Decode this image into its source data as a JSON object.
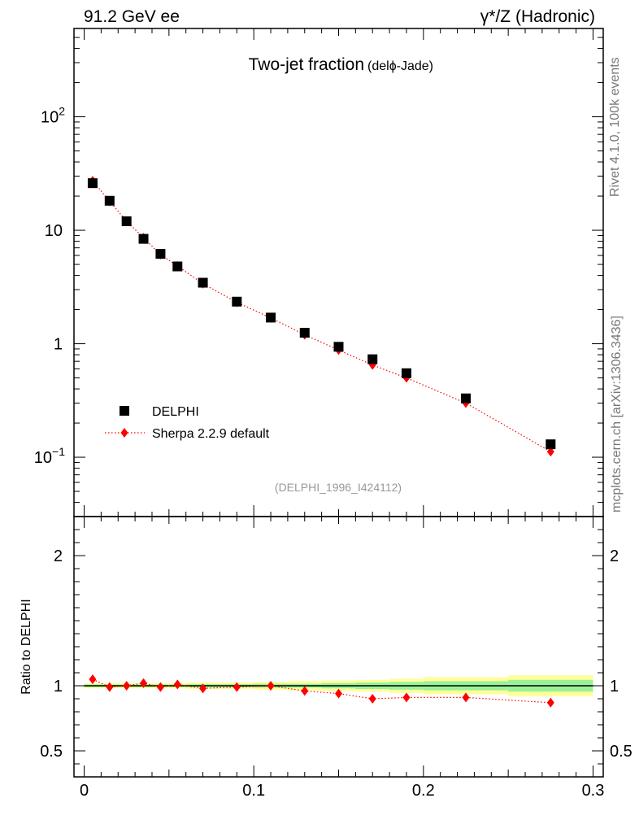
{
  "header": {
    "left": "91.2 GeV ee",
    "right_sym": "γ*/Z",
    "right_rest": " (Hadronic)"
  },
  "side": {
    "rivet": "Rivet 4.1.0,  100k events",
    "mcplots": "mcplots.cern.ch [arXiv:1306.3436]"
  },
  "chart_data": {
    "type": "scatter",
    "title_main": "Two-jet fraction",
    "title_sub_pre": "(del",
    "title_sub_sym": "ϕ",
    "title_sub_post": "-Jade)",
    "reference": "(DELPHI_1996_I424112)",
    "yscale": "log",
    "ylim": [
      0.03,
      600
    ],
    "xlim": [
      -0.006,
      0.306
    ],
    "x_ticks": [
      "0",
      "0.1",
      "0.2",
      "0.3"
    ],
    "y_ticks_main": [
      {
        "value": 0.1,
        "base": "10",
        "exp": "−1"
      },
      {
        "value": 1,
        "label": "1"
      },
      {
        "value": 10,
        "label": "10"
      },
      {
        "value": 100,
        "base": "10",
        "exp": "2"
      }
    ],
    "series": [
      {
        "name": "DELPHI",
        "marker": "square",
        "color": "#000000",
        "x": [
          0.005,
          0.015,
          0.025,
          0.035,
          0.045,
          0.055,
          0.07,
          0.09,
          0.11,
          0.13,
          0.15,
          0.17,
          0.19,
          0.225,
          0.275
        ],
        "y": [
          26.0,
          18.2,
          12.0,
          8.4,
          6.2,
          4.8,
          3.45,
          2.35,
          1.7,
          1.25,
          0.94,
          0.73,
          0.55,
          0.33,
          0.13
        ]
      },
      {
        "name": "Sherpa 2.2.9 default",
        "marker": "diamond",
        "line": "dotted",
        "color": "#ff0000",
        "x": [
          0.005,
          0.015,
          0.025,
          0.035,
          0.045,
          0.055,
          0.07,
          0.09,
          0.11,
          0.13,
          0.15,
          0.17,
          0.19,
          0.225,
          0.275
        ],
        "y": [
          27.3,
          18.0,
          12.0,
          8.6,
          6.1,
          4.85,
          3.38,
          2.32,
          1.69,
          1.2,
          0.88,
          0.65,
          0.5,
          0.3,
          0.112
        ]
      }
    ],
    "ratio": {
      "ylabel": "Ratio to DELPHI",
      "ylim": [
        0.3,
        2.3
      ],
      "y_ticks": [
        {
          "value": 0.5,
          "label": "0.5"
        },
        {
          "value": 1,
          "label": "1"
        },
        {
          "value": 2,
          "label": "2"
        }
      ],
      "values": [
        1.05,
        0.99,
        1.0,
        1.02,
        0.99,
        1.01,
        0.98,
        0.99,
        1.0,
        0.96,
        0.94,
        0.9,
        0.91,
        0.91,
        0.87
      ],
      "band_bins": [
        {
          "x0": 0.0,
          "x1": 0.01,
          "inner": 0.01,
          "outer": 0.02
        },
        {
          "x0": 0.01,
          "x1": 0.02,
          "inner": 0.01,
          "outer": 0.02
        },
        {
          "x0": 0.02,
          "x1": 0.03,
          "inner": 0.01,
          "outer": 0.02
        },
        {
          "x0": 0.03,
          "x1": 0.04,
          "inner": 0.01,
          "outer": 0.02
        },
        {
          "x0": 0.04,
          "x1": 0.05,
          "inner": 0.01,
          "outer": 0.02
        },
        {
          "x0": 0.05,
          "x1": 0.06,
          "inner": 0.01,
          "outer": 0.02
        },
        {
          "x0": 0.06,
          "x1": 0.08,
          "inner": 0.012,
          "outer": 0.025
        },
        {
          "x0": 0.08,
          "x1": 0.1,
          "inner": 0.012,
          "outer": 0.025
        },
        {
          "x0": 0.1,
          "x1": 0.12,
          "inner": 0.015,
          "outer": 0.03
        },
        {
          "x0": 0.12,
          "x1": 0.14,
          "inner": 0.015,
          "outer": 0.035
        },
        {
          "x0": 0.14,
          "x1": 0.16,
          "inner": 0.02,
          "outer": 0.04
        },
        {
          "x0": 0.16,
          "x1": 0.18,
          "inner": 0.025,
          "outer": 0.045
        },
        {
          "x0": 0.18,
          "x1": 0.2,
          "inner": 0.03,
          "outer": 0.055
        },
        {
          "x0": 0.2,
          "x1": 0.25,
          "inner": 0.035,
          "outer": 0.065
        },
        {
          "x0": 0.25,
          "x1": 0.3,
          "inner": 0.045,
          "outer": 0.08
        }
      ]
    },
    "colors": {
      "band_inner": "#99f299",
      "band_outer": "#ffff99",
      "mc": "#ff0000",
      "data": "#000000"
    }
  }
}
